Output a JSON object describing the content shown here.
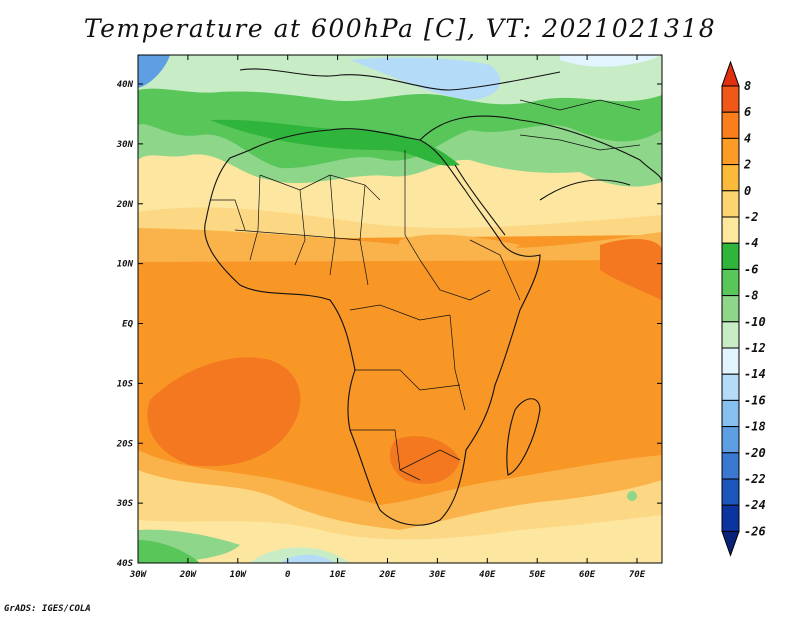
{
  "title": "Temperature at 600hPa [C], VT: 2021021318",
  "credit": "GrADS: IGES/COLA",
  "axes": {
    "lat_labels": [
      "40N",
      "30N",
      "20N",
      "10N",
      "EQ",
      "10S",
      "20S",
      "30S",
      "40S"
    ],
    "lon_labels": [
      "30W",
      "20W",
      "10W",
      "0",
      "10E",
      "20E",
      "30E",
      "40E",
      "50E",
      "60E",
      "70E"
    ]
  },
  "legend": {
    "labels": [
      "8",
      "6",
      "4",
      "2",
      "0",
      "-2",
      "-4",
      "-6",
      "-8",
      "-10",
      "-12",
      "-14",
      "-16",
      "-18",
      "-20",
      "-22",
      "-24",
      "-26"
    ],
    "colors": [
      "#e03010",
      "#f05818",
      "#f87e1e",
      "#fa9c26",
      "#fbba3a",
      "#fcd570",
      "#fde99c",
      "#2fb43c",
      "#59c659",
      "#8ed68a",
      "#c8ecc6",
      "#e2f5ff",
      "#b4dcf8",
      "#86c0f0",
      "#5e9fe4",
      "#3a78d2",
      "#1c55bb",
      "#0c34a0",
      "#08227a"
    ]
  },
  "palette": {
    "deep_orange": "#f47820",
    "orange": "#f89626",
    "light_orange": "#fab24a",
    "pale_yellow": "#fcd884",
    "cream": "#fde6a0",
    "green_dark": "#2fb43c",
    "green": "#59c659",
    "green_light": "#8ed68a",
    "mint": "#c8ecc6",
    "sky": "#b4dcf8",
    "blue": "#5e9fe4"
  }
}
